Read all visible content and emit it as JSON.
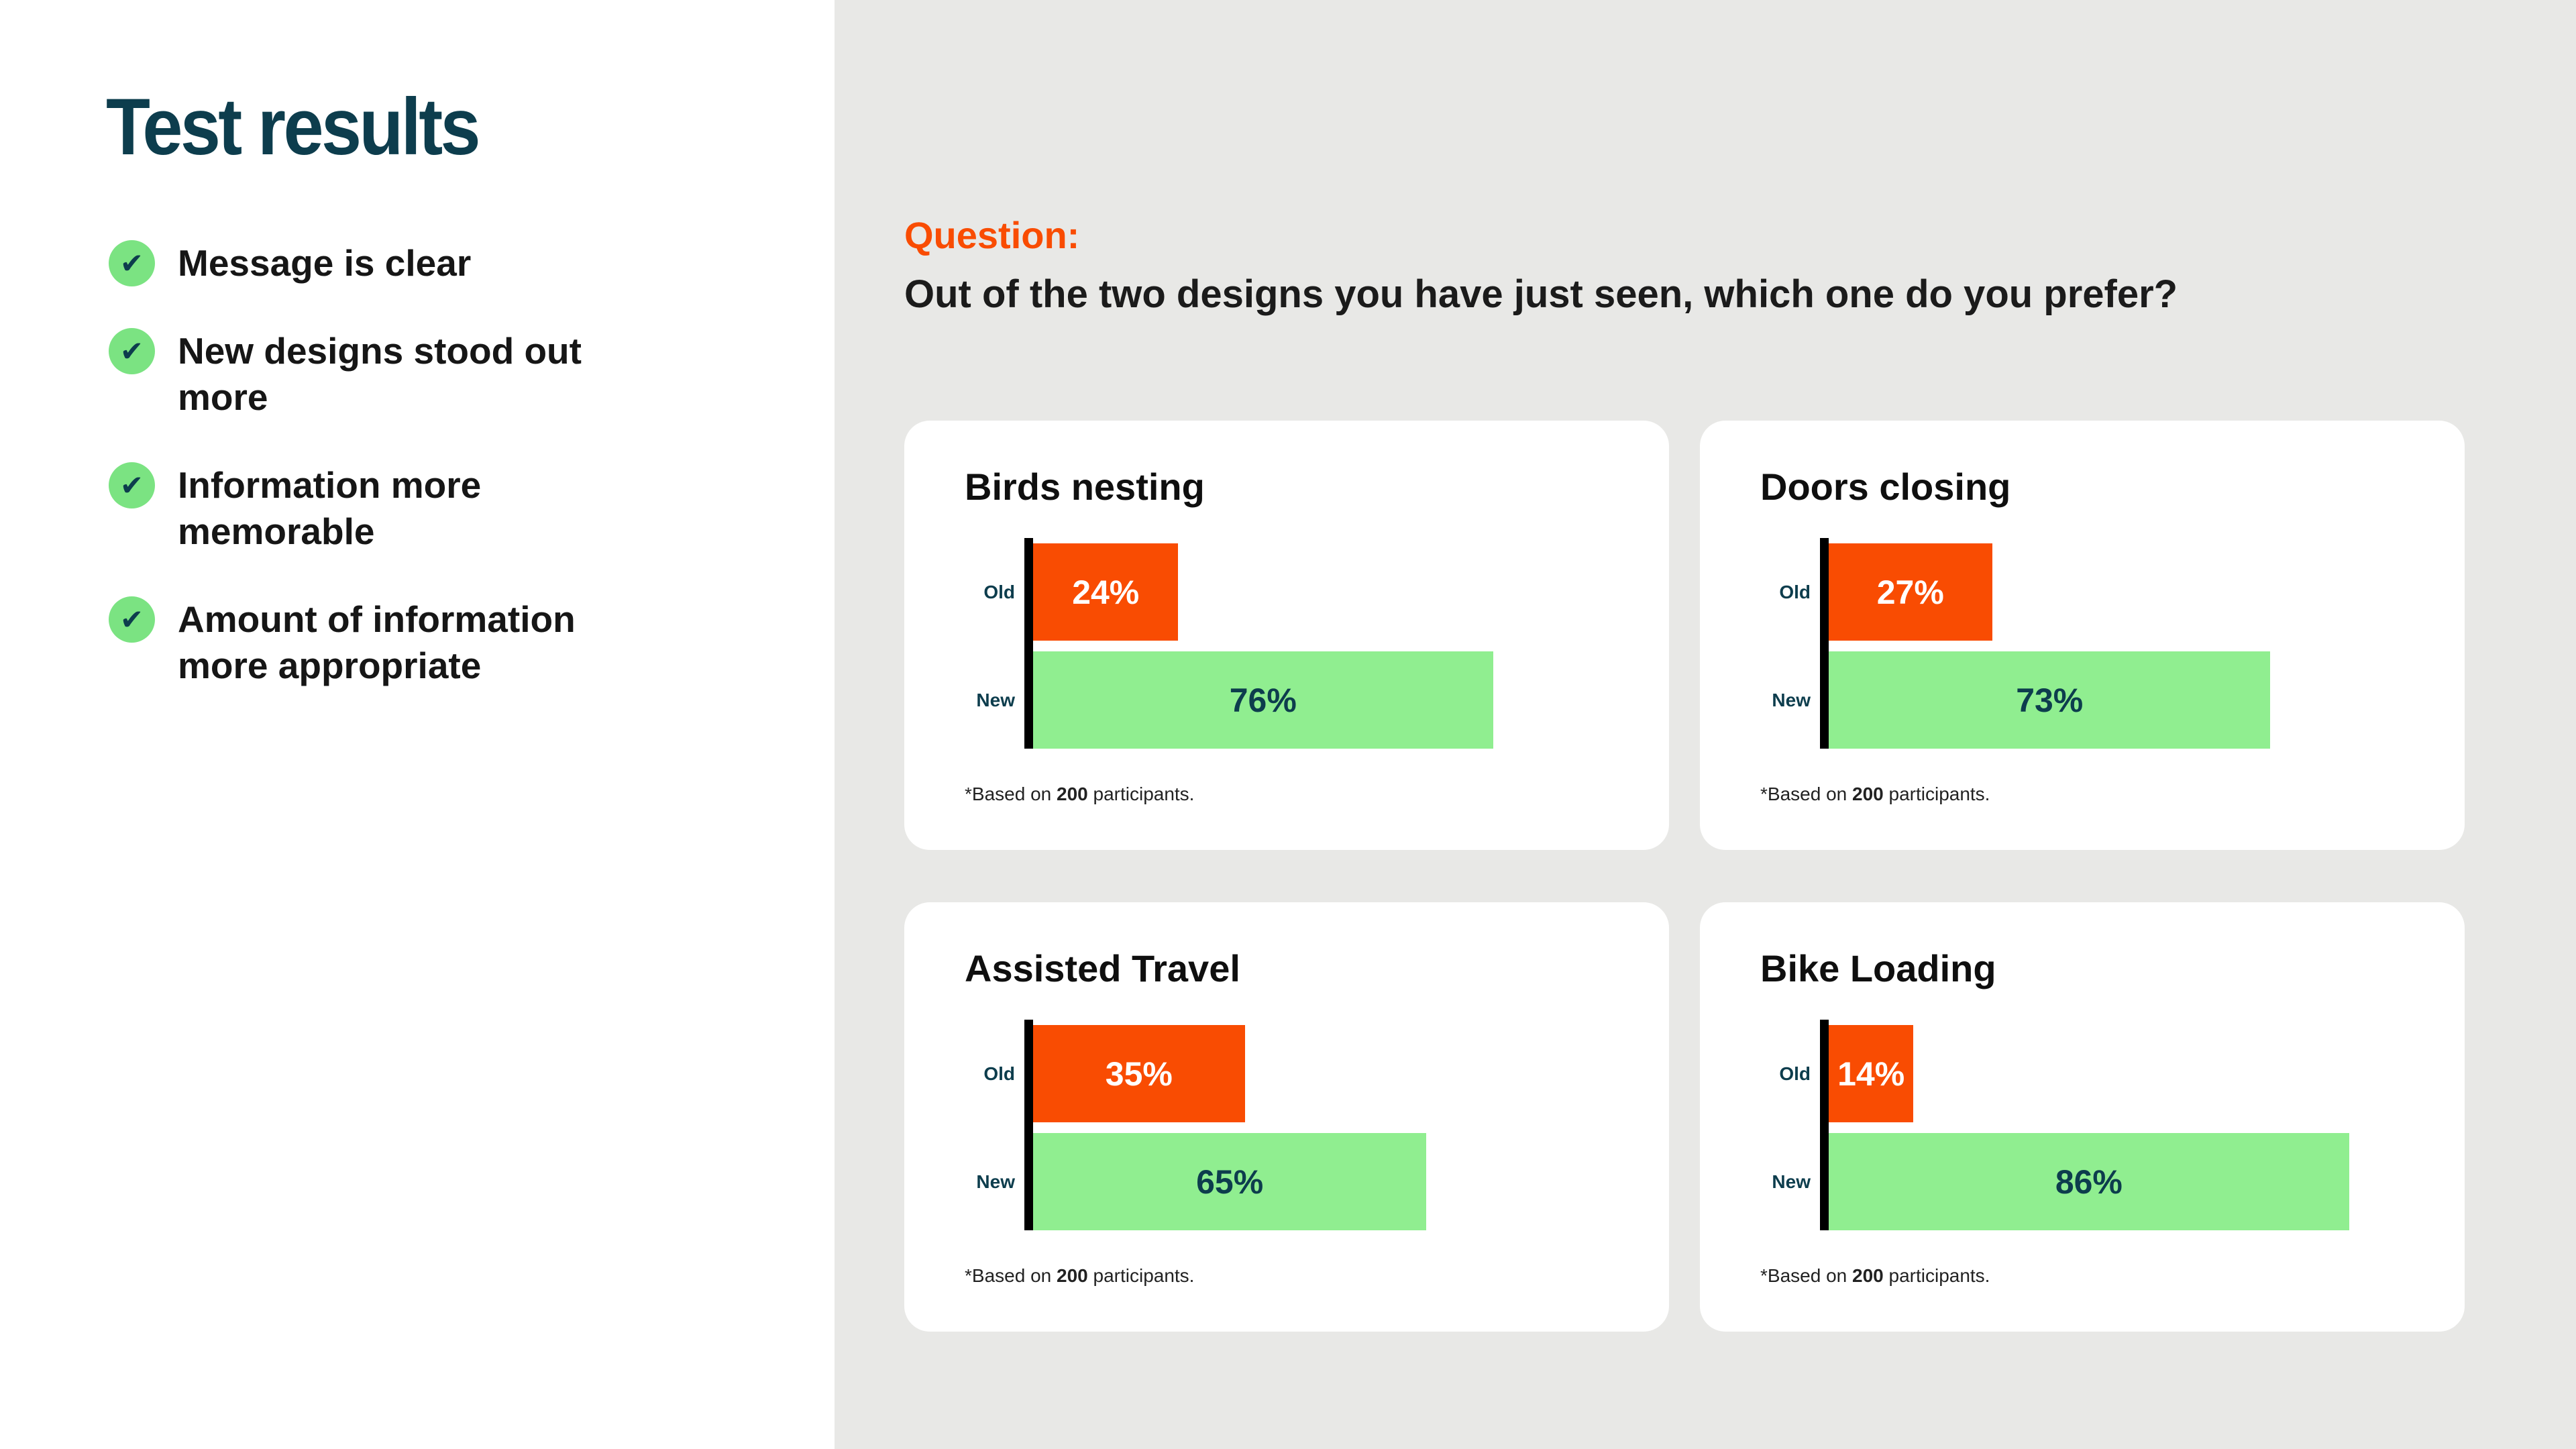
{
  "colors": {
    "title_teal": "#0d3d4d",
    "accent_orange": "#f94c02",
    "old_bar": "#f94c02",
    "new_bar": "#90ee90",
    "check_circle_green": "#7be382",
    "right_panel_gray": "#e8e8e6",
    "bar_text_navy": "#0d3d4d"
  },
  "left_panel": {
    "title": "Test results",
    "checklist": [
      {
        "label": "Message is clear"
      },
      {
        "label": "New designs stood out more"
      },
      {
        "label": "Information more memorable"
      },
      {
        "label": "Amount of information more appropriate"
      }
    ]
  },
  "right_panel": {
    "question_label": "Question:",
    "question_text": "Out of the two designs you have just seen, which one do you prefer?"
  },
  "chart_data": [
    {
      "type": "bar",
      "title": "Birds nesting",
      "categories": [
        "Old",
        "New"
      ],
      "values": [
        24,
        76
      ],
      "values_display": [
        "24%",
        "76%"
      ],
      "xlim": [
        0,
        100
      ],
      "orientation": "horizontal",
      "footnote": {
        "prefix": "*Based on ",
        "bold": "200",
        "suffix": " participants."
      }
    },
    {
      "type": "bar",
      "title": "Doors closing",
      "categories": [
        "Old",
        "New"
      ],
      "values": [
        27,
        73
      ],
      "values_display": [
        "27%",
        "73%"
      ],
      "xlim": [
        0,
        100
      ],
      "orientation": "horizontal",
      "footnote": {
        "prefix": "*Based on ",
        "bold": "200",
        "suffix": " participants."
      }
    },
    {
      "type": "bar",
      "title": "Assisted Travel",
      "categories": [
        "Old",
        "New"
      ],
      "values": [
        35,
        65
      ],
      "values_display": [
        "35%",
        "65%"
      ],
      "xlim": [
        0,
        100
      ],
      "orientation": "horizontal",
      "footnote": {
        "prefix": "*Based on ",
        "bold": "200",
        "suffix": " participants."
      }
    },
    {
      "type": "bar",
      "title": "Bike Loading",
      "categories": [
        "Old",
        "New"
      ],
      "values": [
        14,
        86
      ],
      "values_display": [
        "14%",
        "86%"
      ],
      "xlim": [
        0,
        100
      ],
      "orientation": "horizontal",
      "footnote": {
        "prefix": "*Based on ",
        "bold": "200",
        "suffix": " participants."
      }
    }
  ],
  "icons": {
    "check": "✔"
  }
}
